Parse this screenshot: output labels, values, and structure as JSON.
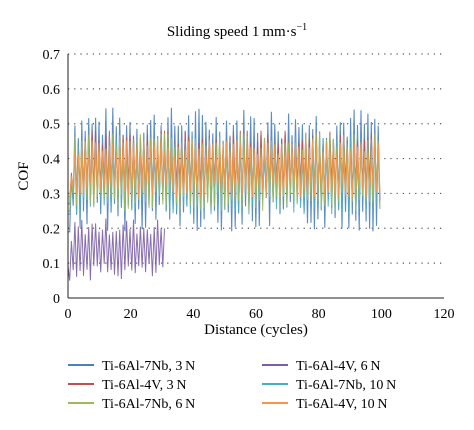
{
  "chart_data": {
    "type": "line",
    "title": "Sliding speed 1 mm·s",
    "title_sup": "−1",
    "xlabel": "Distance (cycles)",
    "ylabel": "COF",
    "xlim": [
      0,
      120
    ],
    "ylim": [
      0,
      0.7
    ],
    "x_ticks": [
      "0",
      "20",
      "40",
      "60",
      "80",
      "100",
      "120"
    ],
    "y_ticks": [
      "0",
      "0.1",
      "0.2",
      "0.3",
      "0.4",
      "0.5",
      "0.6",
      "0.7"
    ],
    "grid": "horizontal dotted",
    "legend_position": "bottom",
    "series": [
      {
        "name": "Ti-6Al-7Nb, 3 N",
        "color": "#4a7fc1",
        "x_range": [
          0,
          100
        ],
        "mean": 0.37,
        "low": 0.19,
        "high": 0.55
      },
      {
        "name": "Ti-6Al-4V, 6 N",
        "color": "#7b5ea8",
        "x_range": [
          0,
          31
        ],
        "mean": 0.14,
        "low": 0.05,
        "high": 0.23
      },
      {
        "name": "Ti-6Al-4V, 3 N",
        "color": "#c0504d",
        "x_range": [
          0,
          100
        ],
        "mean": 0.38,
        "low": 0.27,
        "high": 0.48
      },
      {
        "name": "Ti-6Al-7Nb, 10 N",
        "color": "#4bacc6",
        "x_range": [
          0,
          100
        ],
        "mean": 0.35,
        "low": 0.24,
        "high": 0.47
      },
      {
        "name": "Ti-6Al-7Nb, 6 N",
        "color": "#9bbb59",
        "x_range": [
          0,
          100
        ],
        "mean": 0.36,
        "low": 0.25,
        "high": 0.48
      },
      {
        "name": "Ti-6Al-4V, 10 N",
        "color": "#f79646",
        "x_range": [
          0,
          100
        ],
        "mean": 0.37,
        "low": 0.29,
        "high": 0.46
      }
    ]
  }
}
